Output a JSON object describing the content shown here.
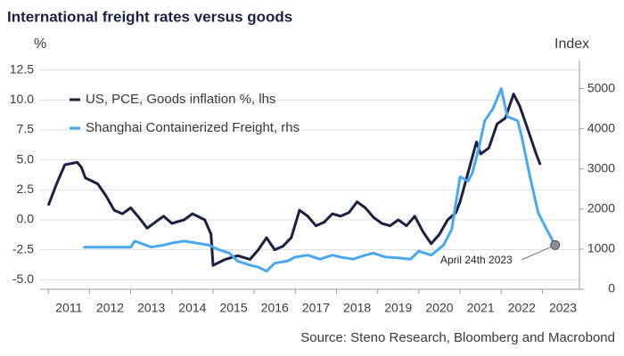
{
  "chart_data": {
    "type": "line",
    "title": "International freight rates versus goods",
    "ylabel": "%",
    "y2label": "Index",
    "source": "Source: Steno Research, Bloomberg and Macrobond",
    "xlim": [
      2010.8,
      2023.9
    ],
    "xticks": [
      {
        "value": 2011,
        "label": "2011"
      },
      {
        "value": 2012,
        "label": "2012"
      },
      {
        "value": 2013,
        "label": "2013"
      },
      {
        "value": 2014,
        "label": "2014"
      },
      {
        "value": 2015,
        "label": "2015"
      },
      {
        "value": 2016,
        "label": "2016"
      },
      {
        "value": 2017,
        "label": "2017"
      },
      {
        "value": 2018,
        "label": "2018"
      },
      {
        "value": 2019,
        "label": "2019"
      },
      {
        "value": 2020,
        "label": "2020"
      },
      {
        "value": 2021,
        "label": "2021"
      },
      {
        "value": 2022,
        "label": "2022"
      },
      {
        "value": 2023,
        "label": "2023"
      }
    ],
    "ylim": [
      -5.8,
      13.3
    ],
    "yticks": [
      12.5,
      {
        "value": 10,
        "label": "10.0"
      },
      7.5,
      {
        "value": 5,
        "label": "5.0"
      },
      2.5,
      {
        "value": 0,
        "label": "0.0"
      },
      -2.5,
      {
        "value": -5,
        "label": "-5.0"
      }
    ],
    "y2lim": [
      0,
      5700
    ],
    "y2ticks": [
      0,
      1000,
      2000,
      3000,
      4000,
      5000
    ],
    "grid": true,
    "legend": "upper left",
    "series": [
      {
        "name": "US, PCE, Goods inflation %, lhs",
        "color": "#1b2140",
        "x": [
          2011.0,
          2011.2,
          2011.4,
          2011.7,
          2011.8,
          2011.9,
          2012.2,
          2012.4,
          2012.6,
          2012.8,
          2013.0,
          2013.2,
          2013.4,
          2013.6,
          2013.8,
          2014.0,
          2014.3,
          2014.5,
          2014.8,
          2014.95,
          2015.0,
          2015.3,
          2015.6,
          2015.9,
          2016.1,
          2016.3,
          2016.5,
          2016.7,
          2016.9,
          2017.1,
          2017.3,
          2017.5,
          2017.7,
          2017.9,
          2018.1,
          2018.3,
          2018.5,
          2018.7,
          2018.9,
          2019.1,
          2019.3,
          2019.5,
          2019.7,
          2019.9,
          2020.1,
          2020.3,
          2020.5,
          2020.7,
          2020.9,
          2021.0,
          2021.2,
          2021.4,
          2021.5,
          2021.7,
          2021.9,
          2022.1,
          2022.3,
          2022.45,
          2022.6,
          2022.75,
          2022.85,
          2022.95
        ],
        "values": [
          1.2,
          3.0,
          4.6,
          4.8,
          4.4,
          3.5,
          3.0,
          2.0,
          0.8,
          0.5,
          1.0,
          0.2,
          -0.7,
          -0.2,
          0.3,
          -0.3,
          0.0,
          0.5,
          0.0,
          -1.2,
          -3.8,
          -3.3,
          -3.0,
          -3.3,
          -2.5,
          -1.5,
          -2.5,
          -2.2,
          -1.5,
          0.8,
          0.3,
          -0.5,
          -0.2,
          0.5,
          0.3,
          0.6,
          1.5,
          1.0,
          0.2,
          -0.3,
          -0.5,
          0.0,
          -0.5,
          0.3,
          -1.0,
          -2.0,
          -1.2,
          0.0,
          0.6,
          1.5,
          4.0,
          6.5,
          5.5,
          6.0,
          8.0,
          8.5,
          10.5,
          9.5,
          8.0,
          6.5,
          5.5,
          4.6
        ]
      },
      {
        "name": "Shanghai Containerized Freight, rhs",
        "color": "#4aa8f0",
        "axis": "y2",
        "x": [
          2011.85,
          2013.0,
          2013.1,
          2013.5,
          2013.8,
          2014.0,
          2014.3,
          2014.6,
          2014.9,
          2015.1,
          2015.4,
          2015.6,
          2015.9,
          2016.1,
          2016.3,
          2016.5,
          2016.8,
          2017.0,
          2017.3,
          2017.6,
          2017.9,
          2018.1,
          2018.4,
          2018.7,
          2018.9,
          2019.2,
          2019.5,
          2019.8,
          2020.0,
          2020.3,
          2020.6,
          2020.8,
          2021.0,
          2021.2,
          2021.3,
          2021.45,
          2021.6,
          2021.8,
          2022.0,
          2022.15,
          2022.4,
          2022.5,
          2022.7,
          2022.9,
          2023.1,
          2023.31
        ],
        "values": [
          1050,
          1050,
          1200,
          1050,
          1100,
          1150,
          1200,
          1150,
          1100,
          1000,
          900,
          700,
          600,
          550,
          450,
          650,
          700,
          800,
          850,
          750,
          850,
          800,
          750,
          850,
          900,
          800,
          780,
          750,
          950,
          850,
          1100,
          1500,
          2800,
          2700,
          2900,
          3500,
          4200,
          4500,
          5000,
          4300,
          4200,
          3800,
          2800,
          1900,
          1500,
          1100
        ]
      }
    ],
    "annotation": "April 24th 2023"
  }
}
